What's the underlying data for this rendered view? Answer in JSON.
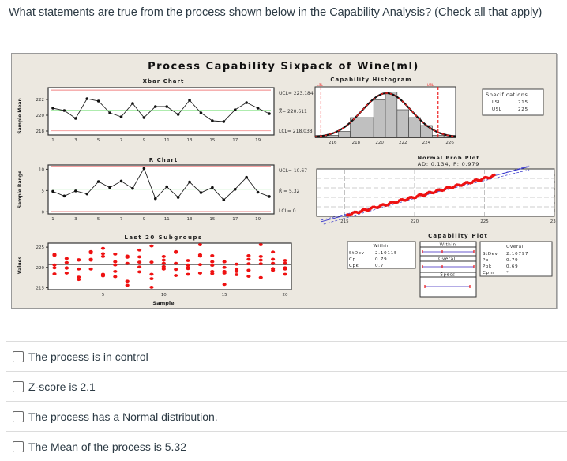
{
  "question": {
    "text": "What statements are true from the process shown below in the Capability Analysis? (Check all that apply)"
  },
  "figure": {
    "title": "Process Capability Sixpack of Wine(ml)",
    "xbar": {
      "title": "Xbar Chart",
      "ylabel": "Sample Mean",
      "ucl_label": "UCL= 223.184",
      "center_label": "X̿= 220.611",
      "lcl_label": "LCL= 218.038",
      "yticks": [
        "222",
        "220",
        "218"
      ],
      "xticks": [
        "1",
        "3",
        "5",
        "7",
        "9",
        "11",
        "13",
        "15",
        "17",
        "19"
      ]
    },
    "rchart": {
      "title": "R Chart",
      "ylabel": "Sample Range",
      "ucl_label": "UCL= 10.67",
      "center_label": "R̄ = 5.32",
      "lcl_label": "LCL= 0",
      "yticks": [
        "10",
        "5",
        "0"
      ],
      "xticks": [
        "1",
        "3",
        "5",
        "7",
        "9",
        "11",
        "13",
        "15",
        "17",
        "19"
      ]
    },
    "last20": {
      "title": "Last 20 Subgroups",
      "ylabel": "Values",
      "xlabel": "Sample",
      "yticks": [
        "225",
        "220",
        "215"
      ],
      "xticks": [
        "5",
        "10",
        "15",
        "20"
      ]
    },
    "histogram": {
      "title": "Capability Histogram",
      "lsl_tag": "LSL",
      "usl_tag": "USL",
      "xticks": [
        "216",
        "218",
        "220",
        "222",
        "224",
        "226"
      ]
    },
    "specs": {
      "title": "Specifications",
      "rows": [
        {
          "name": "LSL",
          "value": "215"
        },
        {
          "name": "USL",
          "value": "225"
        }
      ]
    },
    "normal_plot": {
      "title": "Normal Prob Plot",
      "subtitle": "AD: 0.134, P: 0.979",
      "xticks": [
        "215",
        "220",
        "225",
        "230"
      ]
    },
    "capability_plot": {
      "title": "Capability Plot",
      "within": {
        "title": "Within",
        "rows": [
          {
            "name": "StDev",
            "value": "2.10115"
          },
          {
            "name": "Cp",
            "value": "0.79"
          },
          {
            "name": "Cpk",
            "value": "0.7"
          }
        ]
      },
      "overall": {
        "title": "Overall",
        "rows": [
          {
            "name": "StDev",
            "value": "2.10797"
          },
          {
            "name": "Pp",
            "value": "0.79"
          },
          {
            "name": "Ppk",
            "value": "0.69"
          },
          {
            "name": "Cpm",
            "value": "*"
          }
        ]
      },
      "legend": [
        "Within",
        "Overall",
        "Specs"
      ]
    }
  },
  "chart_data": [
    {
      "type": "line",
      "title": "Xbar Chart",
      "xlabel": "",
      "ylabel": "Sample Mean",
      "x": [
        1,
        2,
        3,
        4,
        5,
        6,
        7,
        8,
        9,
        10,
        11,
        12,
        13,
        14,
        15,
        16,
        17,
        18,
        19,
        20
      ],
      "values": [
        220.9,
        220.6,
        219.6,
        222.1,
        221.8,
        220.3,
        219.8,
        221.5,
        219.7,
        221.1,
        221.1,
        220.1,
        221.9,
        220.3,
        219.3,
        219.2,
        220.7,
        221.6,
        220.9,
        220.2
      ],
      "reference_lines": {
        "UCL": 223.184,
        "center": 220.611,
        "LCL": 218.038
      },
      "ylim": [
        217.5,
        223.5
      ]
    },
    {
      "type": "line",
      "title": "R Chart",
      "xlabel": "",
      "ylabel": "Sample Range",
      "x": [
        1,
        2,
        3,
        4,
        5,
        6,
        7,
        8,
        9,
        10,
        11,
        12,
        13,
        14,
        15,
        16,
        17,
        18,
        19,
        20
      ],
      "values": [
        4.8,
        3.7,
        4.9,
        4.2,
        7.1,
        5.7,
        7.2,
        5.5,
        10.2,
        3.1,
        5.9,
        3.4,
        7.0,
        4.5,
        5.7,
        2.8,
        5.3,
        8.1,
        4.6,
        3.6
      ],
      "reference_lines": {
        "UCL": 10.67,
        "center": 5.32,
        "LCL": 0
      },
      "ylim": [
        -0.5,
        11
      ]
    },
    {
      "type": "scatter",
      "title": "Last 20 Subgroups",
      "xlabel": "Sample",
      "ylabel": "Values",
      "ylim": [
        214.5,
        226
      ],
      "center": 220.611,
      "series": [
        {
          "x": 1,
          "values": [
            223.2,
            223.0,
            220.6,
            219.9,
            218.4
          ]
        },
        {
          "x": 2,
          "values": [
            222.2,
            221.2,
            219.8,
            218.6,
            219.9
          ]
        },
        {
          "x": 3,
          "values": [
            221.9,
            219.6,
            217.6,
            217.0,
            221.8
          ]
        },
        {
          "x": 4,
          "values": [
            223.9,
            223.6,
            222.0,
            221.8,
            219.6
          ]
        },
        {
          "x": 5,
          "values": [
            224.7,
            223.4,
            222.7,
            218.3,
            217.9
          ]
        },
        {
          "x": 6,
          "values": [
            223.3,
            221.4,
            220.6,
            219.0,
            217.7
          ]
        },
        {
          "x": 7,
          "values": [
            222.8,
            222.5,
            221.0,
            216.6,
            215.6
          ]
        },
        {
          "x": 8,
          "values": [
            224.3,
            222.6,
            221.3,
            220.1,
            218.9
          ]
        },
        {
          "x": 9,
          "values": [
            225.3,
            221.3,
            218.3,
            217.2,
            215.1
          ]
        },
        {
          "x": 10,
          "values": [
            222.7,
            221.8,
            221.0,
            220.2,
            219.6
          ]
        },
        {
          "x": 11,
          "values": [
            223.9,
            221.0,
            219.5,
            218.0,
            223.7
          ]
        },
        {
          "x": 12,
          "values": [
            221.7,
            220.6,
            220.0,
            219.7,
            218.3
          ]
        },
        {
          "x": 13,
          "values": [
            225.6,
            223.1,
            222.8,
            220.7,
            218.6
          ]
        },
        {
          "x": 14,
          "values": [
            222.9,
            221.4,
            220.5,
            219.0,
            218.5
          ]
        },
        {
          "x": 15,
          "values": [
            221.4,
            220.0,
            219.0,
            218.6,
            215.8
          ]
        },
        {
          "x": 16,
          "values": [
            220.8,
            219.6,
            219.0,
            218.2,
            219.3
          ]
        },
        {
          "x": 17,
          "values": [
            222.9,
            222.0,
            220.9,
            219.3,
            217.8
          ]
        },
        {
          "x": 18,
          "values": [
            225.6,
            222.7,
            221.8,
            220.9,
            217.5
          ]
        },
        {
          "x": 19,
          "values": [
            223.8,
            222.0,
            221.0,
            219.7,
            219.3
          ]
        },
        {
          "x": 20,
          "values": [
            221.7,
            221.0,
            219.9,
            219.6,
            218.3
          ]
        }
      ]
    },
    {
      "type": "bar",
      "title": "Capability Histogram",
      "categories": [
        "215",
        "216",
        "217",
        "218",
        "219",
        "220",
        "221",
        "222",
        "223",
        "224",
        "225",
        "226"
      ],
      "values": [
        1,
        1,
        3,
        10,
        10,
        19,
        23,
        14,
        10,
        6,
        1,
        1
      ],
      "spec_lines": {
        "LSL": 215,
        "USL": 225
      },
      "xlim": [
        214.5,
        226.5
      ]
    },
    {
      "type": "scatter",
      "title": "Normal Prob Plot",
      "subtitle": "AD: 0.134, P: 0.979",
      "xlim": [
        213,
        230
      ],
      "xticks": [
        215,
        220,
        225,
        230
      ]
    },
    {
      "type": "table",
      "title": "Capability Plot",
      "within": {
        "StDev": 2.10115,
        "Cp": 0.79,
        "Cpk": 0.7
      },
      "overall": {
        "StDev": 2.10797,
        "Pp": 0.79,
        "Ppk": 0.69,
        "Cpm": "*"
      },
      "specs": {
        "LSL": 215,
        "USL": 225
      }
    }
  ],
  "answers": [
    {
      "label": "The process is in control",
      "checked": false
    },
    {
      "label": "Z-score is 2.1",
      "checked": false
    },
    {
      "label": "The process has a Normal distribution.",
      "checked": false
    },
    {
      "label": "The Mean of the process is 5.32",
      "checked": false
    }
  ]
}
